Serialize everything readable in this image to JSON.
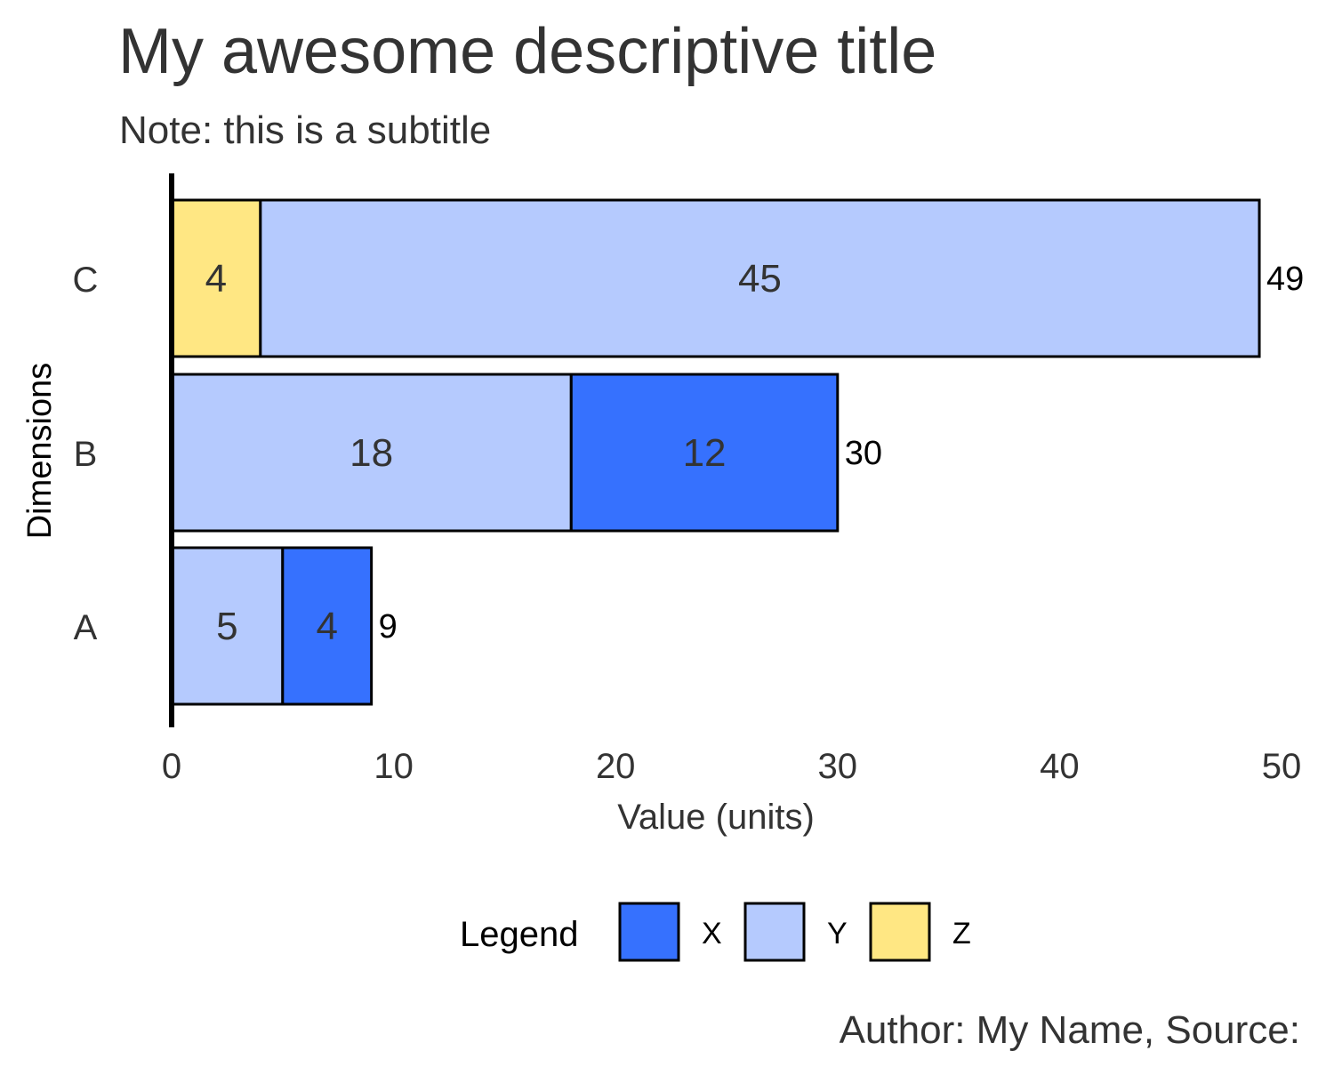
{
  "chart_data": {
    "type": "bar",
    "orientation": "horizontal",
    "stacked": true,
    "title": "My awesome descriptive title",
    "subtitle": "Note: this is a subtitle",
    "xlabel": "Value (units)",
    "ylabel": "Dimensions",
    "xlim": [
      0,
      50
    ],
    "x_ticks": [
      0,
      10,
      20,
      30,
      40,
      50
    ],
    "categories": [
      "A",
      "B",
      "C"
    ],
    "series": [
      {
        "name": "X",
        "color": "#3671fe",
        "values": [
          4,
          12,
          0
        ]
      },
      {
        "name": "Y",
        "color": "#b5cafe",
        "values": [
          5,
          18,
          45
        ]
      },
      {
        "name": "Z",
        "color": "#ffe783",
        "values": [
          0,
          0,
          4
        ]
      }
    ],
    "stack_order": [
      "Z",
      "Y",
      "X"
    ],
    "totals": [
      9,
      30,
      49
    ],
    "legend": {
      "title": "Legend",
      "position": "bottom",
      "entries": [
        "X",
        "Y",
        "Z"
      ]
    },
    "caption": "Author: My Name, Source:",
    "grid": false
  }
}
